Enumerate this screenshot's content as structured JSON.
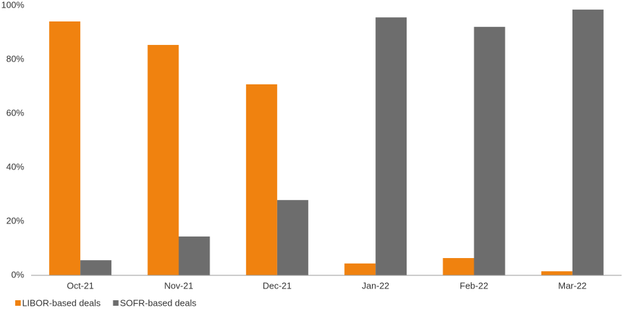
{
  "chart_data": {
    "type": "bar",
    "categories": [
      "Oct-21",
      "Nov-21",
      "Dec-21",
      "Jan-22",
      "Feb-22",
      "Mar-22"
    ],
    "series": [
      {
        "name": "LIBOR-based deals",
        "color": "#f0820f",
        "values": [
          94.1,
          85.4,
          70.8,
          4.4,
          6.4,
          1.5
        ]
      },
      {
        "name": "SOFR-based deals",
        "color": "#6d6d6d",
        "values": [
          5.6,
          14.4,
          27.9,
          95.6,
          92.1,
          98.5
        ]
      }
    ],
    "ylim": [
      0,
      100
    ],
    "yticks": [
      {
        "value": 0,
        "label": "0%"
      },
      {
        "value": 20,
        "label": "20%"
      },
      {
        "value": 40,
        "label": "40%"
      },
      {
        "value": 60,
        "label": "60%"
      },
      {
        "value": 80,
        "label": "80%"
      },
      {
        "value": 100,
        "label": "100%"
      }
    ],
    "grid": false,
    "legend": "bottom-left"
  }
}
